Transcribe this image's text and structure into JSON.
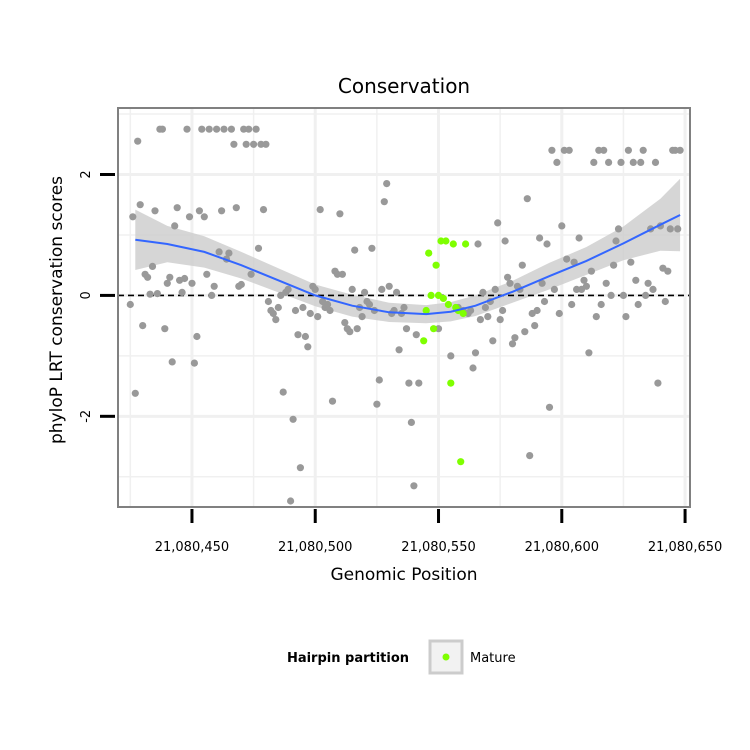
{
  "chart_data": {
    "type": "scatter",
    "title": "Conservation",
    "xlabel": "Genomic Position",
    "ylabel": "phyloP LRT conservation scores",
    "xlim": [
      21080420,
      21080652
    ],
    "ylim": [
      -3.5,
      3.1
    ],
    "x_ticks": [
      21080450,
      21080500,
      21080550,
      21080600,
      21080650
    ],
    "x_tick_labels": [
      "21,080,450",
      "21,080,500",
      "21,080,550",
      "21,080,600",
      "21,080,650"
    ],
    "y_ticks": [
      -2,
      0,
      2
    ],
    "y_tick_labels": [
      "-2",
      "0",
      "2"
    ],
    "reference_line": {
      "y": 0,
      "style": "dashed"
    },
    "legend": {
      "title": "Hairpin partition",
      "items": [
        {
          "label": "Mature",
          "color": "#7fff00"
        }
      ],
      "position": "bottom"
    },
    "colors": {
      "other": "#999999",
      "mature": "#7fff00",
      "smooth": "#3366ff",
      "band": "#cccccc",
      "panel_border": "#808080",
      "grid": "#f0f0f0"
    },
    "smooth_line": {
      "x": [
        21080427,
        21080440,
        21080455,
        21080470,
        21080485,
        21080500,
        21080515,
        21080530,
        21080545,
        21080555,
        21080565,
        21080580,
        21080595,
        21080610,
        21080625,
        21080640,
        21080648
      ],
      "y": [
        0.92,
        0.85,
        0.72,
        0.5,
        0.25,
        0.0,
        -0.17,
        -0.28,
        -0.31,
        -0.27,
        -0.17,
        0.06,
        0.32,
        0.57,
        0.86,
        1.17,
        1.33
      ]
    },
    "confidence_band": {
      "x": [
        21080427,
        21080440,
        21080455,
        21080470,
        21080485,
        21080500,
        21080515,
        21080530,
        21080545,
        21080555,
        21080565,
        21080580,
        21080595,
        21080610,
        21080625,
        21080640,
        21080648
      ],
      "upper": [
        1.42,
        1.15,
        0.98,
        0.72,
        0.45,
        0.18,
        0.01,
        -0.12,
        -0.16,
        -0.11,
        0.0,
        0.24,
        0.54,
        0.8,
        1.14,
        1.6,
        1.93
      ],
      "lower": [
        0.42,
        0.55,
        0.46,
        0.28,
        0.05,
        -0.18,
        -0.35,
        -0.44,
        -0.46,
        -0.43,
        -0.34,
        -0.12,
        0.1,
        0.34,
        0.58,
        0.74,
        0.73
      ]
    },
    "series": [
      {
        "name": "Other",
        "color": "#999999",
        "points": [
          [
            21080425,
            -0.15
          ],
          [
            21080426,
            1.3
          ],
          [
            21080427,
            -1.62
          ],
          [
            21080428,
            2.55
          ],
          [
            21080429,
            1.5
          ],
          [
            21080430,
            -0.5
          ],
          [
            21080431,
            0.35
          ],
          [
            21080432,
            0.3
          ],
          [
            21080433,
            0.02
          ],
          [
            21080434,
            0.48
          ],
          [
            21080435,
            1.4
          ],
          [
            21080436,
            0.03
          ],
          [
            21080437,
            2.75
          ],
          [
            21080438,
            2.75
          ],
          [
            21080439,
            -0.55
          ],
          [
            21080440,
            0.2
          ],
          [
            21080441,
            0.3
          ],
          [
            21080442,
            -1.1
          ],
          [
            21080443,
            1.15
          ],
          [
            21080444,
            1.45
          ],
          [
            21080445,
            0.25
          ],
          [
            21080446,
            0.05
          ],
          [
            21080447,
            0.28
          ],
          [
            21080448,
            2.75
          ],
          [
            21080449,
            1.3
          ],
          [
            21080450,
            0.2
          ],
          [
            21080451,
            -1.12
          ],
          [
            21080452,
            -0.68
          ],
          [
            21080453,
            1.4
          ],
          [
            21080454,
            2.75
          ],
          [
            21080455,
            1.3
          ],
          [
            21080456,
            0.35
          ],
          [
            21080457,
            2.75
          ],
          [
            21080458,
            0.0
          ],
          [
            21080459,
            0.15
          ],
          [
            21080460,
            2.75
          ],
          [
            21080461,
            0.72
          ],
          [
            21080462,
            1.4
          ],
          [
            21080463,
            2.75
          ],
          [
            21080464,
            0.6
          ],
          [
            21080465,
            0.7
          ],
          [
            21080466,
            2.75
          ],
          [
            21080467,
            2.5
          ],
          [
            21080468,
            1.45
          ],
          [
            21080469,
            0.15
          ],
          [
            21080470,
            0.18
          ],
          [
            21080471,
            2.75
          ],
          [
            21080472,
            2.5
          ],
          [
            21080473,
            2.75
          ],
          [
            21080474,
            0.35
          ],
          [
            21080475,
            2.5
          ],
          [
            21080476,
            2.75
          ],
          [
            21080477,
            0.78
          ],
          [
            21080478,
            2.5
          ],
          [
            21080479,
            1.42
          ],
          [
            21080480,
            2.5
          ],
          [
            21080481,
            -0.1
          ],
          [
            21080482,
            -0.25
          ],
          [
            21080483,
            -0.3
          ],
          [
            21080484,
            -0.4
          ],
          [
            21080485,
            -0.2
          ],
          [
            21080486,
            0.0
          ],
          [
            21080487,
            -1.6
          ],
          [
            21080488,
            0.05
          ],
          [
            21080489,
            0.1
          ],
          [
            21080490,
            -3.4
          ],
          [
            21080491,
            -2.05
          ],
          [
            21080492,
            -0.25
          ],
          [
            21080493,
            -0.65
          ],
          [
            21080494,
            -2.85
          ],
          [
            21080495,
            -0.2
          ],
          [
            21080496,
            -0.68
          ],
          [
            21080497,
            -0.85
          ],
          [
            21080498,
            -0.3
          ],
          [
            21080499,
            0.15
          ],
          [
            21080500,
            0.1
          ],
          [
            21080501,
            -0.35
          ],
          [
            21080502,
            1.42
          ],
          [
            21080503,
            -0.1
          ],
          [
            21080504,
            -0.2
          ],
          [
            21080505,
            -0.15
          ],
          [
            21080506,
            -0.25
          ],
          [
            21080507,
            -1.75
          ],
          [
            21080508,
            0.4
          ],
          [
            21080509,
            0.35
          ],
          [
            21080510,
            1.35
          ],
          [
            21080511,
            0.35
          ],
          [
            21080512,
            -0.45
          ],
          [
            21080513,
            -0.55
          ],
          [
            21080514,
            -0.6
          ],
          [
            21080515,
            0.1
          ],
          [
            21080516,
            0.75
          ],
          [
            21080517,
            -0.55
          ],
          [
            21080518,
            -0.2
          ],
          [
            21080519,
            -0.35
          ],
          [
            21080520,
            0.05
          ],
          [
            21080521,
            -0.1
          ],
          [
            21080522,
            -0.15
          ],
          [
            21080523,
            0.78
          ],
          [
            21080524,
            -0.25
          ],
          [
            21080525,
            -1.8
          ],
          [
            21080526,
            -1.4
          ],
          [
            21080527,
            0.1
          ],
          [
            21080528,
            1.55
          ],
          [
            21080529,
            1.85
          ],
          [
            21080530,
            0.15
          ],
          [
            21080531,
            -0.3
          ],
          [
            21080532,
            -0.25
          ],
          [
            21080533,
            0.05
          ],
          [
            21080534,
            -0.9
          ],
          [
            21080535,
            -0.3
          ],
          [
            21080536,
            -0.2
          ],
          [
            21080537,
            -0.55
          ],
          [
            21080538,
            -1.45
          ],
          [
            21080539,
            -2.1
          ],
          [
            21080540,
            -3.15
          ],
          [
            21080541,
            -0.65
          ],
          [
            21080542,
            -1.45
          ],
          [
            21080550,
            -0.55
          ],
          [
            21080555,
            -1.0
          ],
          [
            21080558,
            -0.2
          ],
          [
            21080560,
            -0.25
          ],
          [
            21080562,
            -0.3
          ],
          [
            21080563,
            -0.25
          ],
          [
            21080564,
            -1.2
          ],
          [
            21080565,
            -0.95
          ],
          [
            21080566,
            0.85
          ],
          [
            21080567,
            -0.4
          ],
          [
            21080568,
            0.05
          ],
          [
            21080569,
            -0.2
          ],
          [
            21080570,
            -0.35
          ],
          [
            21080571,
            -0.1
          ],
          [
            21080572,
            -0.75
          ],
          [
            21080573,
            0.1
          ],
          [
            21080574,
            1.2
          ],
          [
            21080575,
            -0.4
          ],
          [
            21080576,
            -0.25
          ],
          [
            21080577,
            0.9
          ],
          [
            21080578,
            0.3
          ],
          [
            21080579,
            0.2
          ],
          [
            21080580,
            -0.8
          ],
          [
            21080581,
            -0.7
          ],
          [
            21080582,
            0.15
          ],
          [
            21080583,
            0.1
          ],
          [
            21080584,
            0.5
          ],
          [
            21080585,
            -0.6
          ],
          [
            21080586,
            1.6
          ],
          [
            21080587,
            -2.65
          ],
          [
            21080588,
            -0.3
          ],
          [
            21080589,
            -0.5
          ],
          [
            21080590,
            -0.25
          ],
          [
            21080591,
            0.95
          ],
          [
            21080592,
            0.2
          ],
          [
            21080593,
            -0.1
          ],
          [
            21080594,
            0.85
          ],
          [
            21080595,
            -1.85
          ],
          [
            21080596,
            2.4
          ],
          [
            21080597,
            0.1
          ],
          [
            21080598,
            2.2
          ],
          [
            21080599,
            -0.3
          ],
          [
            21080600,
            1.15
          ],
          [
            21080601,
            2.4
          ],
          [
            21080602,
            0.6
          ],
          [
            21080603,
            2.4
          ],
          [
            21080604,
            -0.15
          ],
          [
            21080605,
            0.55
          ],
          [
            21080606,
            0.1
          ],
          [
            21080607,
            0.95
          ],
          [
            21080608,
            0.1
          ],
          [
            21080609,
            0.25
          ],
          [
            21080610,
            0.15
          ],
          [
            21080611,
            -0.95
          ],
          [
            21080612,
            0.4
          ],
          [
            21080613,
            2.2
          ],
          [
            21080614,
            -0.35
          ],
          [
            21080615,
            2.4
          ],
          [
            21080616,
            -0.15
          ],
          [
            21080617,
            2.4
          ],
          [
            21080618,
            0.2
          ],
          [
            21080619,
            2.2
          ],
          [
            21080620,
            0.0
          ],
          [
            21080621,
            0.5
          ],
          [
            21080622,
            0.9
          ],
          [
            21080623,
            1.1
          ],
          [
            21080624,
            2.2
          ],
          [
            21080625,
            0.0
          ],
          [
            21080626,
            -0.35
          ],
          [
            21080627,
            2.4
          ],
          [
            21080628,
            0.55
          ],
          [
            21080629,
            2.2
          ],
          [
            21080630,
            0.25
          ],
          [
            21080631,
            -0.15
          ],
          [
            21080632,
            2.2
          ],
          [
            21080633,
            2.4
          ],
          [
            21080634,
            0.0
          ],
          [
            21080635,
            0.2
          ],
          [
            21080636,
            1.1
          ],
          [
            21080637,
            0.1
          ],
          [
            21080638,
            2.2
          ],
          [
            21080639,
            -1.45
          ],
          [
            21080640,
            1.15
          ],
          [
            21080641,
            0.45
          ],
          [
            21080642,
            -0.1
          ],
          [
            21080643,
            0.4
          ],
          [
            21080644,
            1.1
          ],
          [
            21080645,
            2.4
          ],
          [
            21080646,
            2.4
          ],
          [
            21080647,
            1.1
          ],
          [
            21080648,
            2.4
          ]
        ]
      },
      {
        "name": "Mature",
        "color": "#7fff00",
        "points": [
          [
            21080544,
            -0.75
          ],
          [
            21080545,
            -0.25
          ],
          [
            21080546,
            0.7
          ],
          [
            21080547,
            0.0
          ],
          [
            21080548,
            -0.55
          ],
          [
            21080549,
            0.5
          ],
          [
            21080550,
            0.0
          ],
          [
            21080551,
            0.9
          ],
          [
            21080552,
            -0.05
          ],
          [
            21080553,
            0.9
          ],
          [
            21080554,
            -0.15
          ],
          [
            21080555,
            -1.45
          ],
          [
            21080556,
            0.85
          ],
          [
            21080557,
            -0.2
          ],
          [
            21080558,
            -0.25
          ],
          [
            21080559,
            -2.75
          ],
          [
            21080560,
            -0.3
          ],
          [
            21080561,
            0.85
          ]
        ]
      }
    ]
  }
}
